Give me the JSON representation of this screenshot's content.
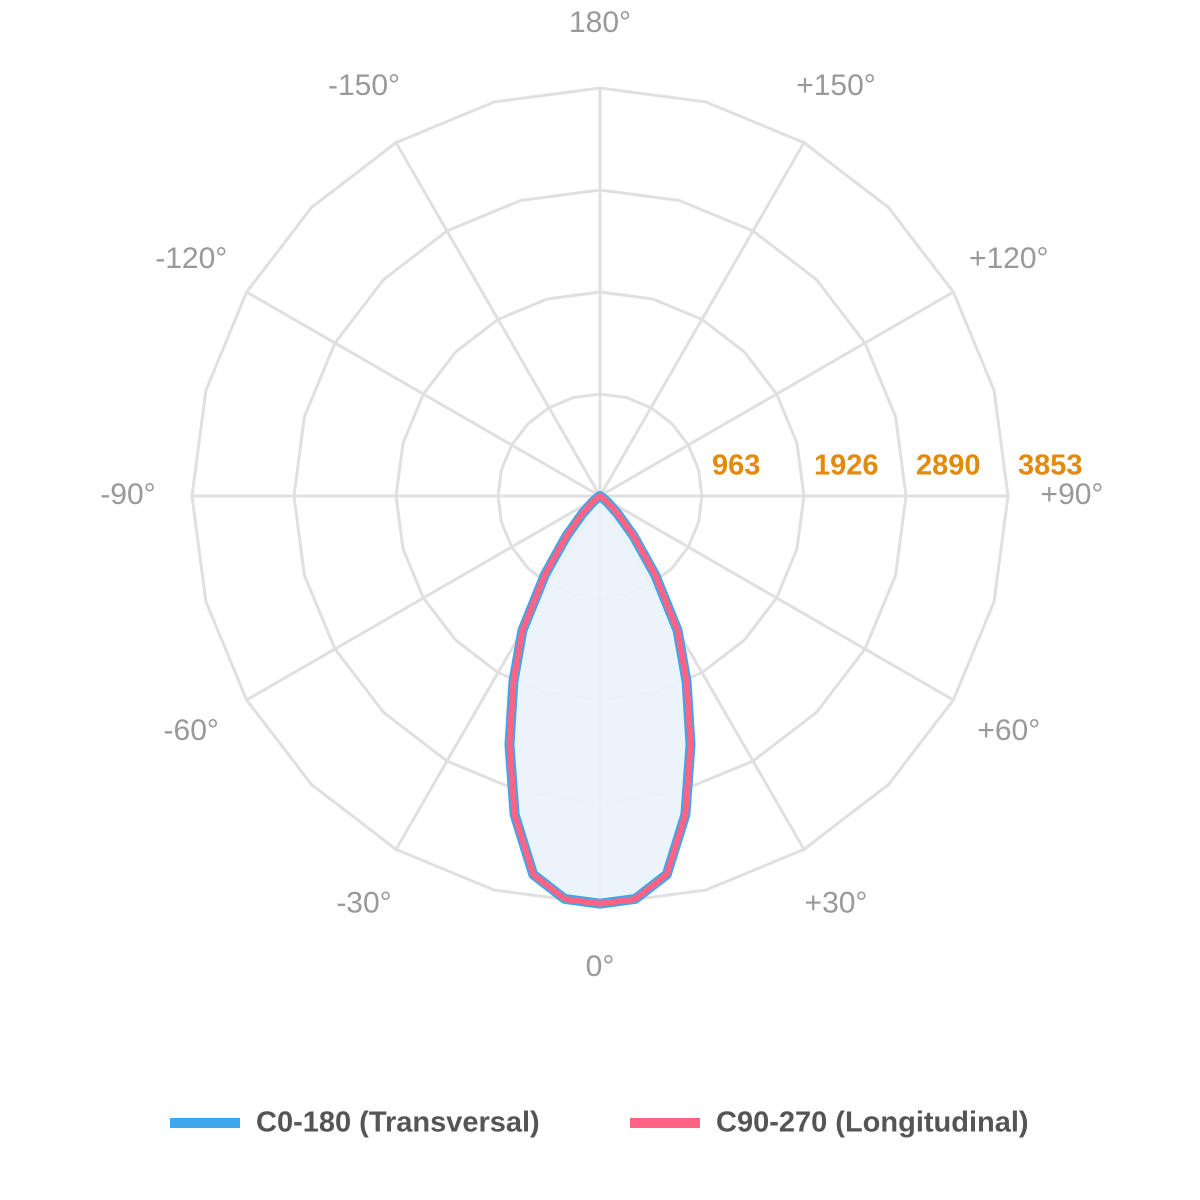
{
  "chart_data": {
    "type": "polar",
    "x": [
      -90,
      -85,
      -80,
      -75,
      -70,
      -65,
      -60,
      -55,
      -50,
      -45,
      -40,
      -35,
      -30,
      -25,
      -20,
      -15,
      -10,
      -5,
      0,
      5,
      10,
      15,
      20,
      25,
      30,
      35,
      40,
      45,
      50,
      55,
      60,
      65,
      70,
      75,
      80,
      85,
      90
    ],
    "series": [
      {
        "name": "C0-180 (Transversal)",
        "color": "#3ea6ea",
        "values": [
          0,
          0,
          0,
          0,
          0,
          0,
          0,
          30,
          95,
          235,
          490,
          905,
          1465,
          1935,
          2500,
          3115,
          3630,
          3820,
          3850,
          3820,
          3630,
          3115,
          2500,
          1935,
          1465,
          905,
          490,
          235,
          95,
          30,
          0,
          0,
          0,
          0,
          0,
          0,
          0
        ]
      },
      {
        "name": "C90-270 (Longitudinal)",
        "color": "#ff6384",
        "values": [
          0,
          0,
          0,
          0,
          0,
          0,
          0,
          30,
          95,
          235,
          490,
          905,
          1465,
          1935,
          2500,
          3115,
          3630,
          3820,
          3850,
          3820,
          3630,
          3115,
          2500,
          1935,
          1465,
          905,
          490,
          235,
          95,
          30,
          0,
          0,
          0,
          0,
          0,
          0,
          0
        ]
      }
    ],
    "rlim": [
      0,
      3853
    ],
    "rticks": [
      963,
      1926,
      2890,
      3853
    ],
    "xticks": [
      {
        "value": -150,
        "label": "-150°"
      },
      {
        "value": -120,
        "label": "-120°"
      },
      {
        "value": -90,
        "label": "-90°"
      },
      {
        "value": -60,
        "label": "-60°"
      },
      {
        "value": -30,
        "label": "-30°"
      },
      {
        "value": 0,
        "label": "0°"
      },
      {
        "value": 30,
        "label": "+30°"
      },
      {
        "value": 60,
        "label": "+60°"
      },
      {
        "value": 90,
        "label": "+90°"
      },
      {
        "value": 120,
        "label": "+120°"
      },
      {
        "value": 150,
        "label": "+150°"
      },
      {
        "value": 180,
        "label": "180°"
      }
    ],
    "fill": "#eaf3fb",
    "grid": true,
    "legend": "bottom"
  }
}
